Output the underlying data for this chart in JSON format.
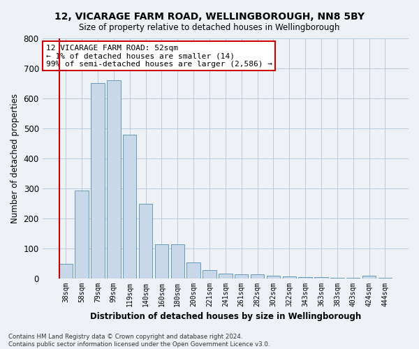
{
  "title1": "12, VICARAGE FARM ROAD, WELLINGBOROUGH, NN8 5BY",
  "title2": "Size of property relative to detached houses in Wellingborough",
  "xlabel": "Distribution of detached houses by size in Wellingborough",
  "ylabel": "Number of detached properties",
  "categories": [
    "38sqm",
    "58sqm",
    "79sqm",
    "99sqm",
    "119sqm",
    "140sqm",
    "160sqm",
    "180sqm",
    "200sqm",
    "221sqm",
    "241sqm",
    "261sqm",
    "282sqm",
    "302sqm",
    "322sqm",
    "343sqm",
    "363sqm",
    "383sqm",
    "403sqm",
    "424sqm",
    "444sqm"
  ],
  "values": [
    47,
    293,
    650,
    660,
    478,
    248,
    113,
    113,
    52,
    27,
    16,
    14,
    13,
    8,
    5,
    4,
    3,
    2,
    1,
    8,
    1
  ],
  "bar_color": "#c8d8e8",
  "bar_edge_color": "#6699bb",
  "highlight_edge_color": "#cc0000",
  "annotation_line1": "12 VICARAGE FARM ROAD: 52sqm",
  "annotation_line2": "← 1% of detached houses are smaller (14)",
  "annotation_line3": "99% of semi-detached houses are larger (2,586) →",
  "annotation_box_color": "white",
  "annotation_box_edge_color": "#cc0000",
  "ylim": [
    0,
    800
  ],
  "yticks": [
    0,
    100,
    200,
    300,
    400,
    500,
    600,
    700,
    800
  ],
  "footer1": "Contains HM Land Registry data © Crown copyright and database right 2024.",
  "footer2": "Contains public sector information licensed under the Open Government Licence v3.0.",
  "bg_color": "#eef2f7",
  "plot_bg_color": "#eef2f7",
  "grid_color": "#b0c4d8"
}
